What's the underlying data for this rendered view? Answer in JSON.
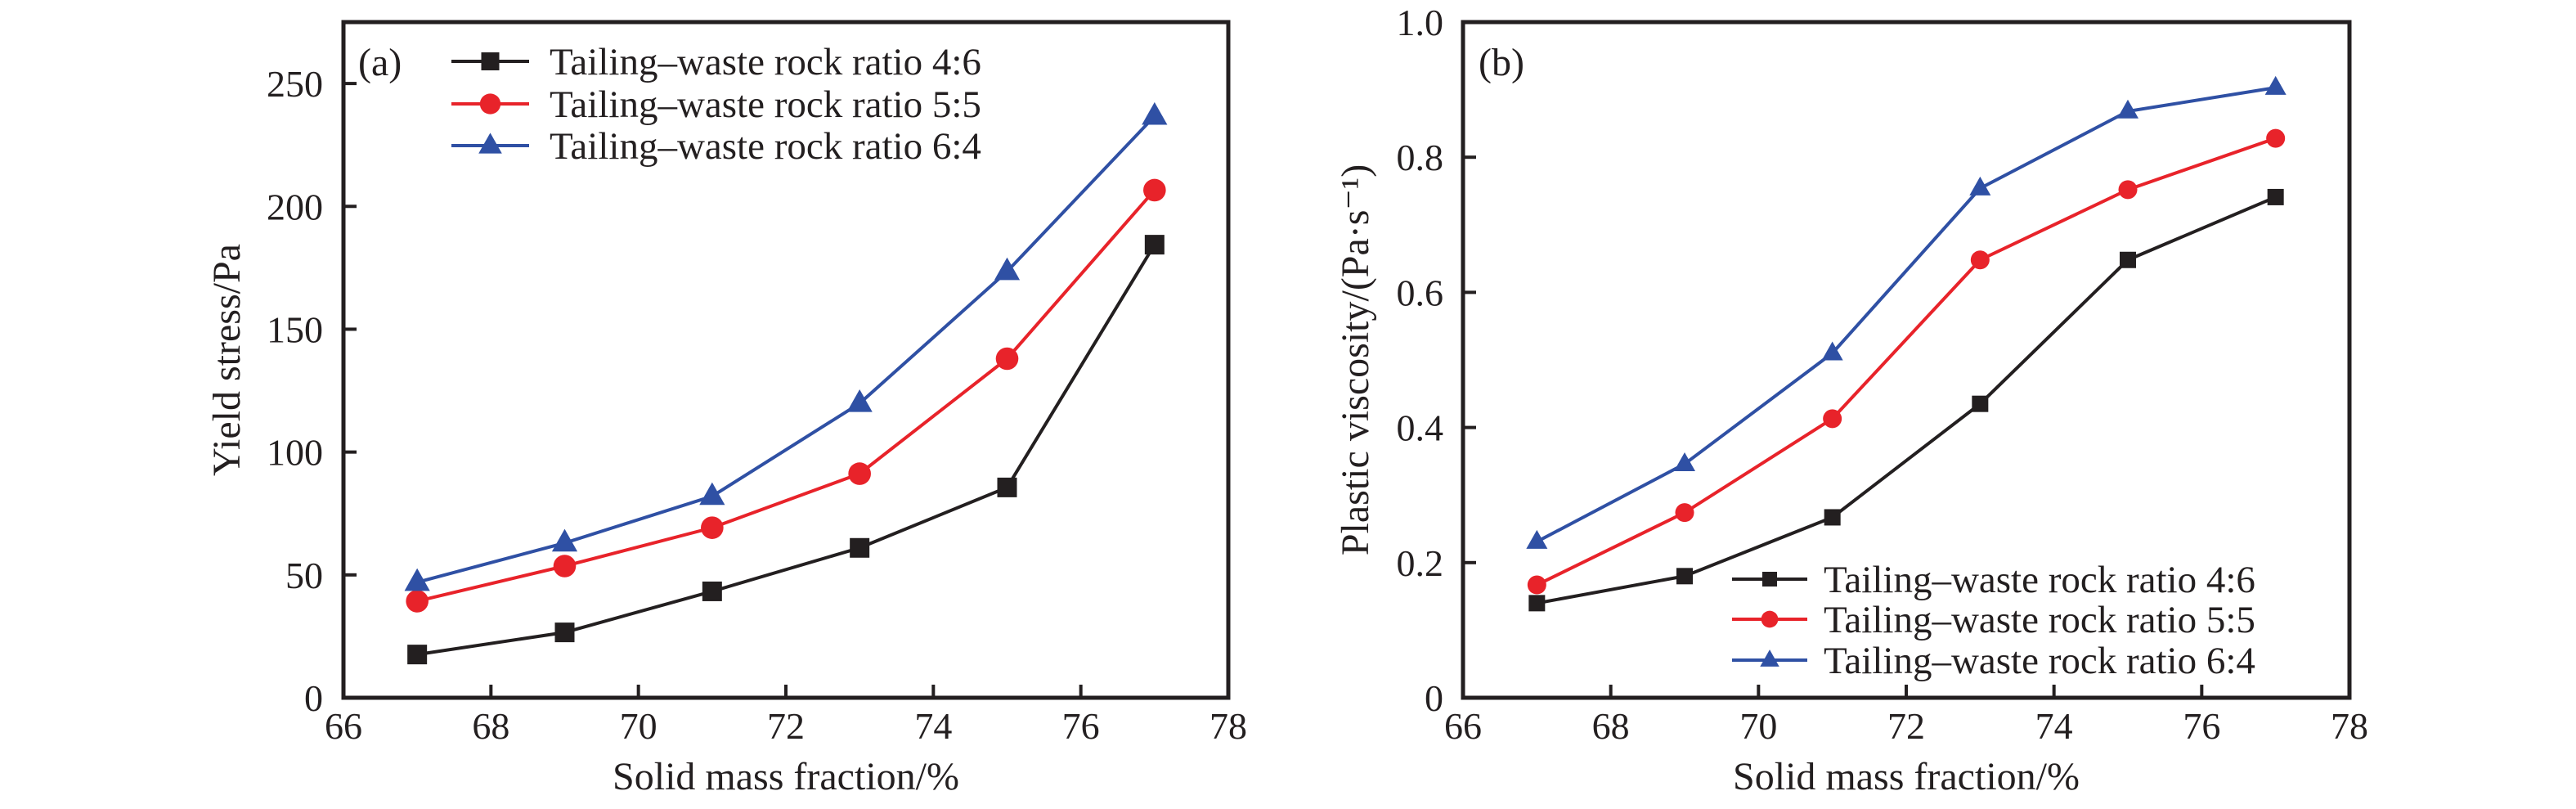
{
  "figure": {
    "colors": {
      "axis": "#231f20",
      "series_4_6": "#231f20",
      "series_5_5": "#e8232a",
      "series_6_4": "#2f50a4"
    }
  },
  "chart_data": [
    {
      "panel_label": "(a)",
      "type": "line",
      "title": "",
      "xlabel": "Solid mass fraction/%",
      "ylabel": "Yield stress/Pa",
      "xlim": [
        66,
        78
      ],
      "ylim": [
        0,
        275
      ],
      "xticks": [
        66,
        68,
        70,
        72,
        74,
        76,
        78
      ],
      "yticks": [
        0,
        50,
        100,
        150,
        200,
        250
      ],
      "xtick_labels": [
        "66",
        "68",
        "70",
        "72",
        "74",
        "76",
        "78"
      ],
      "ytick_labels": [
        "0",
        "50",
        "100",
        "150",
        "200",
        "250"
      ],
      "grid": false,
      "legend_position": "top-left",
      "x": [
        67,
        69,
        71,
        73,
        75,
        77
      ],
      "series": [
        {
          "name": "Tailing–waste rock ratio 4:6",
          "marker": "square",
          "color_key": "series_4_6",
          "values": [
            17.6,
            26.6,
            43.3,
            61.0,
            85.6,
            184.4
          ]
        },
        {
          "name": "Tailing–waste rock ratio 5:5",
          "marker": "circle",
          "color_key": "series_5_5",
          "values": [
            39.3,
            53.6,
            69.2,
            91.2,
            138.0,
            206.6
          ]
        },
        {
          "name": "Tailing–waste rock ratio 6:4",
          "marker": "triangle",
          "color_key": "series_6_4",
          "values": [
            47.0,
            63.0,
            82.0,
            119.8,
            173.5,
            236.7
          ]
        }
      ]
    },
    {
      "panel_label": "(b)",
      "type": "line",
      "title": "",
      "xlabel": "Solid mass fraction/%",
      "ylabel": "Plastic viscosity/(Pa·s⁻¹)",
      "xlim": [
        66,
        78
      ],
      "ylim": [
        0,
        1.0
      ],
      "xticks": [
        66,
        68,
        70,
        72,
        74,
        76,
        78
      ],
      "yticks": [
        0,
        0.2,
        0.4,
        0.6,
        0.8,
        1.0
      ],
      "xtick_labels": [
        "66",
        "68",
        "70",
        "72",
        "74",
        "76",
        "78"
      ],
      "ytick_labels": [
        "0",
        "0.2",
        "0.4",
        "0.6",
        "0.8",
        "1.0"
      ],
      "grid": false,
      "legend_position": "bottom-right",
      "x": [
        67,
        69,
        71,
        73,
        75,
        77
      ],
      "series": [
        {
          "name": "Tailing–waste rock ratio 4:6",
          "marker": "square",
          "color_key": "series_4_6",
          "values": [
            0.14,
            0.18,
            0.267,
            0.435,
            0.648,
            0.741
          ]
        },
        {
          "name": "Tailing–waste rock ratio 5:5",
          "marker": "circle",
          "color_key": "series_5_5",
          "values": [
            0.167,
            0.274,
            0.413,
            0.648,
            0.752,
            0.828
          ]
        },
        {
          "name": "Tailing–waste rock ratio 6:4",
          "marker": "triangle",
          "color_key": "series_6_4",
          "values": [
            0.231,
            0.346,
            0.51,
            0.754,
            0.868,
            0.903
          ]
        }
      ]
    }
  ]
}
